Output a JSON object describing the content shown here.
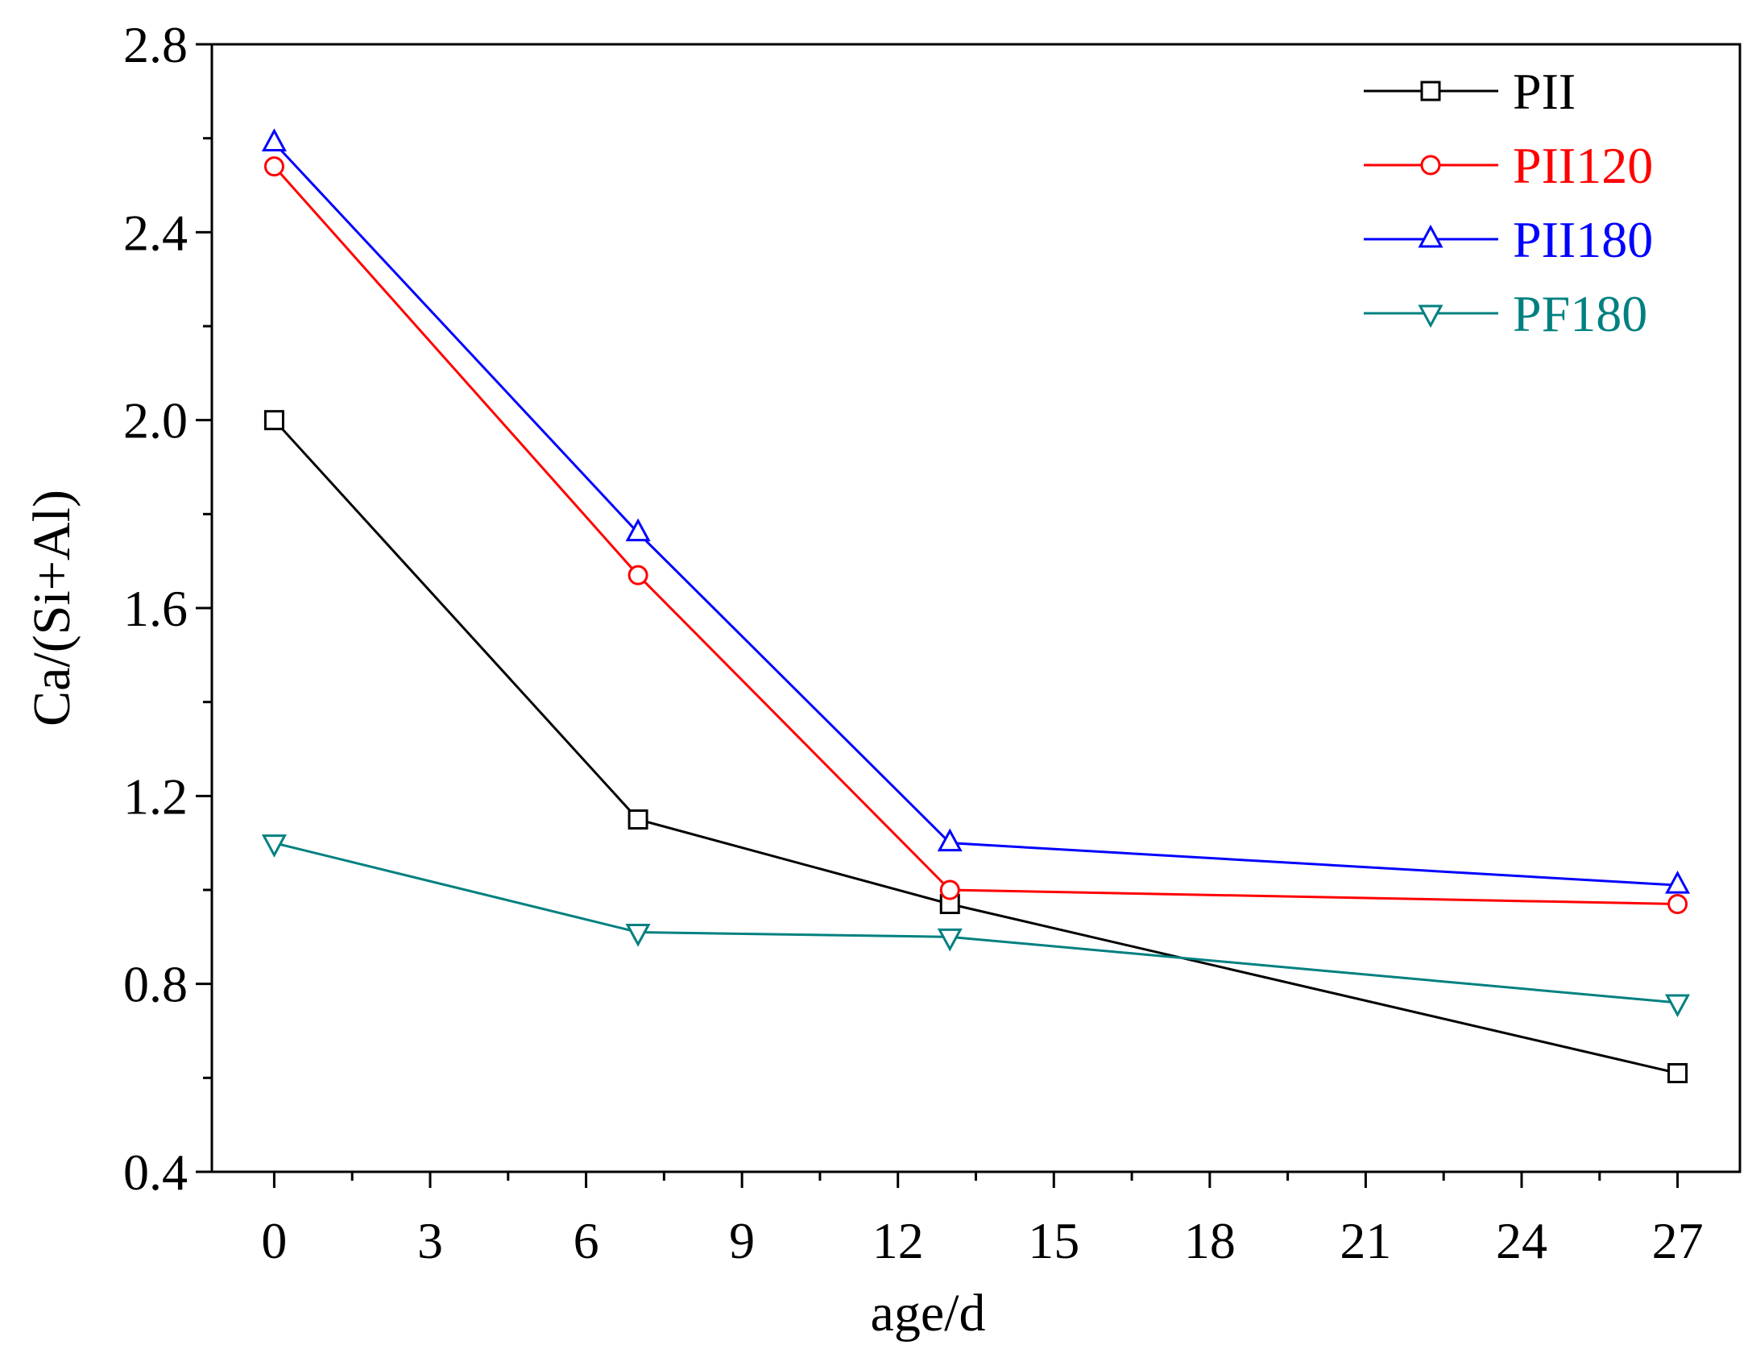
{
  "chart_data": {
    "type": "line",
    "xlabel": "age/d",
    "ylabel": "Ca/(Si+Al)",
    "xlim": [
      -1.2,
      28.2
    ],
    "ylim": [
      0.4,
      2.8
    ],
    "x_ticks": [
      0,
      3,
      6,
      9,
      12,
      15,
      18,
      21,
      24,
      27
    ],
    "x_tick_labels": [
      "0",
      "3",
      "6",
      "9",
      "12",
      "15",
      "18",
      "21",
      "24",
      "27"
    ],
    "x_minor_ticks": [
      1.5,
      4.5,
      7.5,
      10.5,
      13.5,
      16.5,
      19.5,
      22.5,
      25.5
    ],
    "y_ticks": [
      0.4,
      0.8,
      1.2,
      1.6,
      2.0,
      2.4,
      2.8
    ],
    "y_tick_labels": [
      "0.4",
      "0.8",
      "1.2",
      "1.6",
      "2.0",
      "2.4",
      "2.8"
    ],
    "y_minor_ticks": [
      0.6,
      1.0,
      1.4,
      1.8,
      2.2,
      2.6
    ],
    "grid": false,
    "legend_position": "top-right",
    "series": [
      {
        "name": "PII",
        "color": "#000000",
        "marker": "square",
        "x": [
          0,
          7,
          13,
          27
        ],
        "values": [
          2.0,
          1.15,
          0.97,
          0.61
        ]
      },
      {
        "name": "PII120",
        "color": "#ff0000",
        "marker": "circle",
        "x": [
          0,
          7,
          13,
          27
        ],
        "values": [
          2.54,
          1.67,
          1.0,
          0.97
        ]
      },
      {
        "name": "PII180",
        "color": "#0000ff",
        "marker": "triangle-up",
        "x": [
          0,
          7,
          13,
          27
        ],
        "values": [
          2.59,
          1.76,
          1.1,
          1.01
        ]
      },
      {
        "name": "PF180",
        "color": "#008080",
        "marker": "triangle-down",
        "x": [
          0,
          7,
          13,
          27
        ],
        "values": [
          1.1,
          0.91,
          0.9,
          0.76
        ]
      }
    ]
  }
}
